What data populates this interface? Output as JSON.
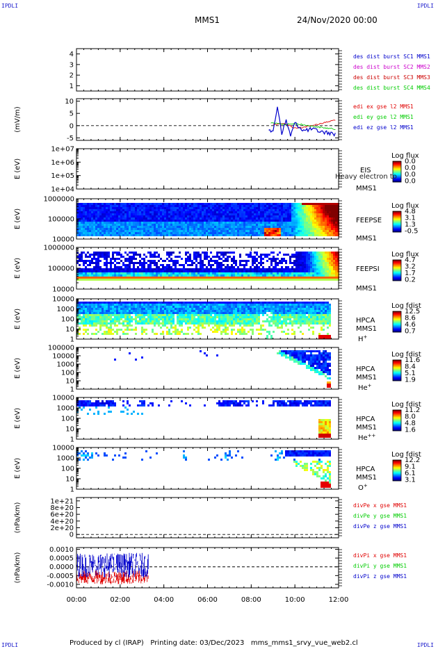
{
  "header": {
    "corner_label": "IPDLI",
    "mission": "MMS1",
    "date": "24/Nov/2020 00:00"
  },
  "footer": {
    "produced_by": "Produced by cl (IRAP)",
    "printing_date": "Printing date: 03/Dec/2023",
    "script_name": "mms_mms1_srvy_vue_web2.cl"
  },
  "colors": {
    "mms1": "#0000cc",
    "mms2": "#cc00cc",
    "mms3": "#cc0000",
    "mms4": "#00cc00",
    "x_comp": "#e00000",
    "y_comp": "#00cc00",
    "z_comp": "#0000cc"
  },
  "chart_data": [
    {
      "id": "dist",
      "type": "line",
      "ylabel": "",
      "ylim": [
        0.5,
        4.5
      ],
      "yticks": [
        "1",
        "2",
        "3",
        "4"
      ],
      "legend": [
        {
          "label": "des dist burst SC1 MMS1",
          "color": "#0000cc"
        },
        {
          "label": "des dist burst SC2 MMS2",
          "color": "#cc00cc"
        },
        {
          "label": "des dist burst SC3 MMS3",
          "color": "#cc0000"
        },
        {
          "label": "des dist burst SC4 MMS4",
          "color": "#00cc00"
        }
      ],
      "series": []
    },
    {
      "id": "edi",
      "type": "line",
      "ylabel": "(mV/m)",
      "ylim": [
        -6,
        11
      ],
      "yticks": [
        "-5",
        "0",
        "5",
        "10"
      ],
      "yticks_values": [
        -5,
        0,
        5,
        10
      ],
      "legend": [
        {
          "label": "edi ex gse l2 MMS1",
          "color": "#e00000"
        },
        {
          "label": "edi ey gse l2 MMS1",
          "color": "#00cc00"
        },
        {
          "label": "edi ez gse l2 MMS1",
          "color": "#0000cc"
        }
      ],
      "series": [
        {
          "name": "edi ex gse l2 MMS1",
          "x": [
            9.0,
            9.5,
            10.0,
            10.5,
            11.0,
            11.5,
            11.9
          ],
          "y": [
            0.5,
            1.0,
            -1.0,
            -0.5,
            0.5,
            1.5,
            2.5
          ]
        },
        {
          "name": "edi ey gse l2 MMS1",
          "x": [
            8.9,
            9.2,
            9.6,
            10.0,
            10.5,
            11.0,
            11.9
          ],
          "y": [
            1.0,
            0.8,
            0.5,
            0.8,
            0.2,
            -0.5,
            -1.5
          ]
        },
        {
          "name": "edi ez gse l2 MMS1",
          "x": [
            8.8,
            9.0,
            9.2,
            9.4,
            9.6,
            9.8,
            10.0,
            10.4,
            10.8,
            11.2,
            11.6,
            11.9
          ],
          "y": [
            -1.0,
            -3.0,
            8.0,
            -3.0,
            2.0,
            -4.0,
            1.0,
            -2.0,
            -1.5,
            -2.5,
            -3.0,
            -3.5
          ]
        }
      ],
      "zero_line": true
    },
    {
      "id": "eis",
      "type": "heatmap",
      "ylabel": "E (eV)",
      "yticks": [
        "1e+04",
        "1e+05",
        "1e+06",
        "1e+07"
      ],
      "label_right": "EIS",
      "label_sub": "MMS1",
      "overlay_text": "Heavy electron to",
      "colorbar": {
        "title": "Log flux",
        "ticks": [
          "0.0",
          "0.0",
          "0.0",
          "0.0"
        ]
      }
    },
    {
      "id": "feepse",
      "type": "heatmap",
      "ylabel": "E (eV)",
      "yticks": [
        "10000",
        "100000",
        "1000000"
      ],
      "label_right": "FEEPSE",
      "label_sub": "MMS1",
      "colorbar": {
        "title": "Log flux",
        "ticks": [
          "4.8",
          "3.1",
          "1.3",
          "-0.5"
        ]
      }
    },
    {
      "id": "feepsi",
      "type": "heatmap",
      "ylabel": "E (eV)",
      "yticks": [
        "10000",
        "100000",
        "1000000"
      ],
      "label_right": "FEEPSI",
      "label_sub": "MMS1",
      "colorbar": {
        "title": "Log flux",
        "ticks": [
          "4.7",
          "3.2",
          "1.7",
          "0.2"
        ]
      }
    },
    {
      "id": "hpca_h",
      "type": "heatmap",
      "ylabel": "E (eV)",
      "yticks": [
        "1",
        "10",
        "100",
        "1000",
        "10000"
      ],
      "label_right": "HPCA",
      "label_sub": "MMS1",
      "species": "H",
      "species_sup": "+",
      "colorbar": {
        "title": "Log fdist",
        "ticks": [
          "12.5",
          "8.6",
          "4.6",
          "0.7"
        ]
      }
    },
    {
      "id": "hpca_he",
      "type": "heatmap",
      "ylabel": "E (eV)",
      "yticks": [
        "1",
        "10",
        "100",
        "1000",
        "10000",
        "100000"
      ],
      "label_right": "HPCA",
      "label_sub": "MMS1",
      "species": "He",
      "species_sup": "+",
      "colorbar": {
        "title": "Log fdist",
        "ticks": [
          "11.6",
          "8.4",
          "5.1",
          "1.9"
        ]
      }
    },
    {
      "id": "hpca_hepp",
      "type": "heatmap",
      "ylabel": "E (eV)",
      "yticks": [
        "1",
        "10",
        "100",
        "1000",
        "10000"
      ],
      "label_right": "HPCA",
      "label_sub": "MMS1",
      "species": "He",
      "species_sup": "++",
      "colorbar": {
        "title": "Log fdist",
        "ticks": [
          "11.2",
          "8.0",
          "4.8",
          "1.6"
        ]
      }
    },
    {
      "id": "hpca_o",
      "type": "heatmap",
      "ylabel": "E (eV)",
      "yticks": [
        "1",
        "10",
        "100",
        "1000",
        "10000"
      ],
      "label_right": "HPCA",
      "label_sub": "MMS1",
      "species": "O",
      "species_sup": "+",
      "colorbar": {
        "title": "Log fdist",
        "ticks": [
          "12.2",
          "9.1",
          "6.1",
          "3.1"
        ]
      }
    },
    {
      "id": "divpe",
      "type": "line",
      "ylabel": "(nPa/km)",
      "ylim": [
        -0.1,
        1.1
      ],
      "yticks": [
        "0",
        "2e+20",
        "4e+20",
        "6e+20",
        "8e+20",
        "1e+21"
      ],
      "yticks_values": [
        0,
        0.2,
        0.4,
        0.6,
        0.8,
        1.0
      ],
      "legend": [
        {
          "label": "divPe x gse MMS1",
          "color": "#e00000"
        },
        {
          "label": "divPe y gse MMS1",
          "color": "#00cc00"
        },
        {
          "label": "divPe z gse MMS1",
          "color": "#0000cc"
        }
      ],
      "series": [],
      "zero_line": true
    },
    {
      "id": "divpi",
      "type": "line",
      "ylabel": "(nPa/km)",
      "ylim": [
        -0.0012,
        0.0011
      ],
      "yticks": [
        "-0.0010",
        "-0.0005",
        "0.0000",
        "0.0005",
        "0.0010"
      ],
      "yticks_values": [
        -0.001,
        -0.0005,
        0,
        0.0005,
        0.001
      ],
      "legend": [
        {
          "label": "divPi x gse MMS1",
          "color": "#e00000"
        },
        {
          "label": "divPi y gse MMS1",
          "color": "#00cc00"
        },
        {
          "label": "divPi z gse MMS1",
          "color": "#0000cc"
        }
      ],
      "series": [
        {
          "name": "divPi x gse MMS1",
          "x": [
            0.0,
            3.3
          ],
          "y": [
            -0.0006,
            -0.0006
          ],
          "spread": 0.0004
        },
        {
          "name": "divPi z gse MMS1",
          "x": [
            0.0,
            3.3
          ],
          "y": [
            0.0001,
            0.0001
          ],
          "spread": 0.0007
        }
      ],
      "zero_line": true
    }
  ],
  "time_axis": {
    "xlim": [
      0,
      12
    ],
    "ticks": [
      "00:00",
      "02:00",
      "04:00",
      "06:00",
      "08:00",
      "10:00",
      "12:00"
    ],
    "tick_values": [
      0,
      2,
      4,
      6,
      8,
      10,
      12
    ]
  }
}
